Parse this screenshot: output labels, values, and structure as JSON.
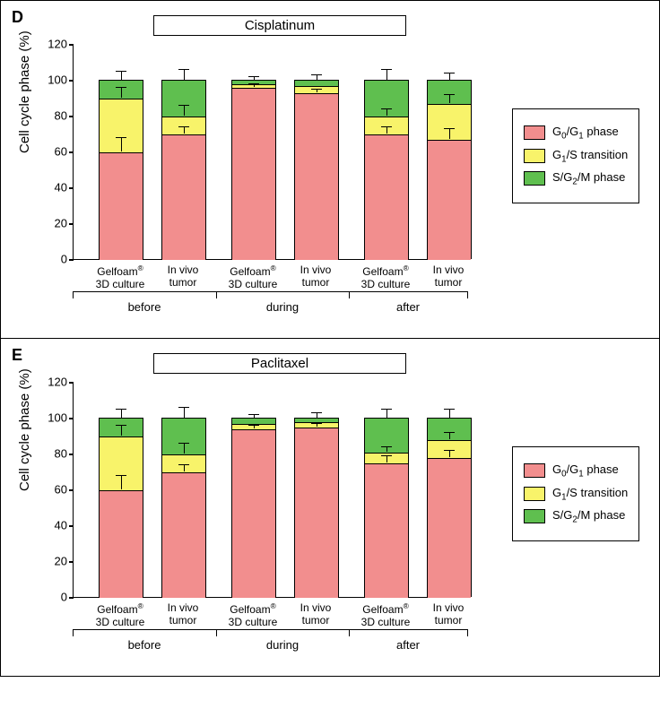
{
  "colors": {
    "g0g1": "#f28e8e",
    "g1s": "#f8f36a",
    "sg2m": "#5fbf4f",
    "border": "#000000",
    "bg": "#ffffff"
  },
  "legend": {
    "items": [
      {
        "key": "g0g1",
        "label_html": "G<sub>0</sub>/G<sub>1</sub> phase"
      },
      {
        "key": "g1s",
        "label_html": "G<sub>1</sub>/S transition"
      },
      {
        "key": "sg2m",
        "label_html": "S/G<sub>2</sub>/M phase"
      }
    ]
  },
  "axis": {
    "ylabel": "Cell cycle phase (%)",
    "ymax": 120,
    "yticks": [
      0,
      20,
      40,
      60,
      80,
      100,
      120
    ]
  },
  "categories": {
    "bar_labels": [
      "Gelfoam®\n3D culture",
      "In vivo\ntumor",
      "Gelfoam®\n3D culture",
      "In vivo\ntumor",
      "Gelfoam®\n3D culture",
      "In vivo\ntumor"
    ],
    "groups": [
      "before",
      "during",
      "after"
    ]
  },
  "panels": [
    {
      "letter": "D",
      "title": "Cisplatinum",
      "bars": [
        {
          "g0g1": 60,
          "g1s": 30,
          "sg2m": 10,
          "err": [
            {
              "at": 60,
              "e": 8
            },
            {
              "at": 90,
              "e": 6
            },
            {
              "at": 100,
              "e": 5
            }
          ]
        },
        {
          "g0g1": 70,
          "g1s": 10,
          "sg2m": 20,
          "err": [
            {
              "at": 70,
              "e": 4
            },
            {
              "at": 80,
              "e": 6
            },
            {
              "at": 100,
              "e": 6
            }
          ]
        },
        {
          "g0g1": 96,
          "g1s": 2,
          "sg2m": 2,
          "err": [
            {
              "at": 96,
              "e": 2
            },
            {
              "at": 100,
              "e": 2
            }
          ]
        },
        {
          "g0g1": 93,
          "g1s": 4,
          "sg2m": 3,
          "err": [
            {
              "at": 93,
              "e": 2
            },
            {
              "at": 100,
              "e": 3
            }
          ]
        },
        {
          "g0g1": 70,
          "g1s": 10,
          "sg2m": 20,
          "err": [
            {
              "at": 70,
              "e": 4
            },
            {
              "at": 80,
              "e": 4
            },
            {
              "at": 100,
              "e": 6
            }
          ]
        },
        {
          "g0g1": 67,
          "g1s": 20,
          "sg2m": 13,
          "err": [
            {
              "at": 67,
              "e": 6
            },
            {
              "at": 87,
              "e": 5
            },
            {
              "at": 100,
              "e": 4
            }
          ]
        }
      ]
    },
    {
      "letter": "E",
      "title": "Paclitaxel",
      "bars": [
        {
          "g0g1": 60,
          "g1s": 30,
          "sg2m": 10,
          "err": [
            {
              "at": 60,
              "e": 8
            },
            {
              "at": 90,
              "e": 6
            },
            {
              "at": 100,
              "e": 5
            }
          ]
        },
        {
          "g0g1": 70,
          "g1s": 10,
          "sg2m": 20,
          "err": [
            {
              "at": 70,
              "e": 4
            },
            {
              "at": 80,
              "e": 6
            },
            {
              "at": 100,
              "e": 6
            }
          ]
        },
        {
          "g0g1": 94,
          "g1s": 3,
          "sg2m": 3,
          "err": [
            {
              "at": 94,
              "e": 2
            },
            {
              "at": 100,
              "e": 2
            }
          ]
        },
        {
          "g0g1": 95,
          "g1s": 3,
          "sg2m": 2,
          "err": [
            {
              "at": 95,
              "e": 2
            },
            {
              "at": 100,
              "e": 3
            }
          ]
        },
        {
          "g0g1": 75,
          "g1s": 6,
          "sg2m": 19,
          "err": [
            {
              "at": 75,
              "e": 4
            },
            {
              "at": 81,
              "e": 3
            },
            {
              "at": 100,
              "e": 5
            }
          ]
        },
        {
          "g0g1": 78,
          "g1s": 10,
          "sg2m": 12,
          "err": [
            {
              "at": 78,
              "e": 4
            },
            {
              "at": 88,
              "e": 4
            },
            {
              "at": 100,
              "e": 5
            }
          ]
        }
      ]
    }
  ]
}
